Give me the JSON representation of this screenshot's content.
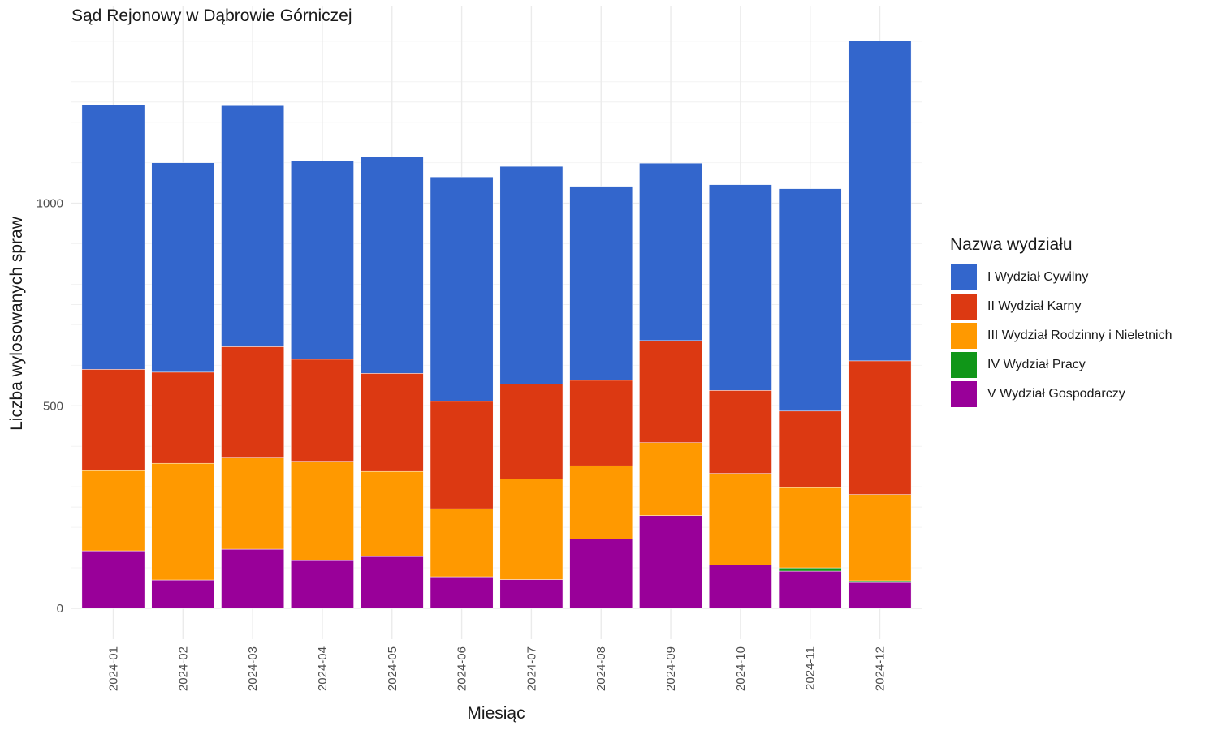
{
  "chart_data": {
    "type": "bar",
    "stacked": true,
    "title": "Sąd Rejonowy w Dąbrowie Górniczej",
    "xlabel": "Miesiąc",
    "ylabel": "Liczba wylosowanych spraw",
    "ylim": [
      0,
      1410
    ],
    "yticks": [
      0,
      500,
      1000
    ],
    "ytick_labels": [
      "0",
      "500",
      "1000"
    ],
    "grid": true,
    "legend_title": "Nazwa wydziału",
    "legend_position": "right",
    "categories": [
      "2024-01",
      "2024-02",
      "2024-03",
      "2024-04",
      "2024-05",
      "2024-06",
      "2024-07",
      "2024-08",
      "2024-09",
      "2024-10",
      "2024-11",
      "2024-12"
    ],
    "series": [
      {
        "name": "I Wydział Cywilny",
        "color": "#3366CC",
        "values": [
          652,
          517,
          595,
          489,
          535,
          554,
          537,
          479,
          438,
          508,
          549,
          790
        ]
      },
      {
        "name": "II Wydział Karny",
        "color": "#DC3912",
        "values": [
          250,
          225,
          275,
          252,
          242,
          265,
          235,
          211,
          252,
          205,
          189,
          330
        ]
      },
      {
        "name": "III Wydział Rodzinny i Nieletnich",
        "color": "#FF9900",
        "values": [
          198,
          288,
          225,
          245,
          210,
          168,
          248,
          181,
          180,
          226,
          198,
          213
        ]
      },
      {
        "name": "IV Wydział Pracy",
        "color": "#109618",
        "values": [
          0,
          0,
          0,
          0,
          0,
          0,
          0,
          0,
          0,
          0,
          8,
          4
        ]
      },
      {
        "name": "V Wydział Gospodarczy",
        "color": "#990099",
        "values": [
          142,
          70,
          146,
          118,
          128,
          78,
          71,
          171,
          229,
          107,
          92,
          64
        ]
      }
    ]
  }
}
